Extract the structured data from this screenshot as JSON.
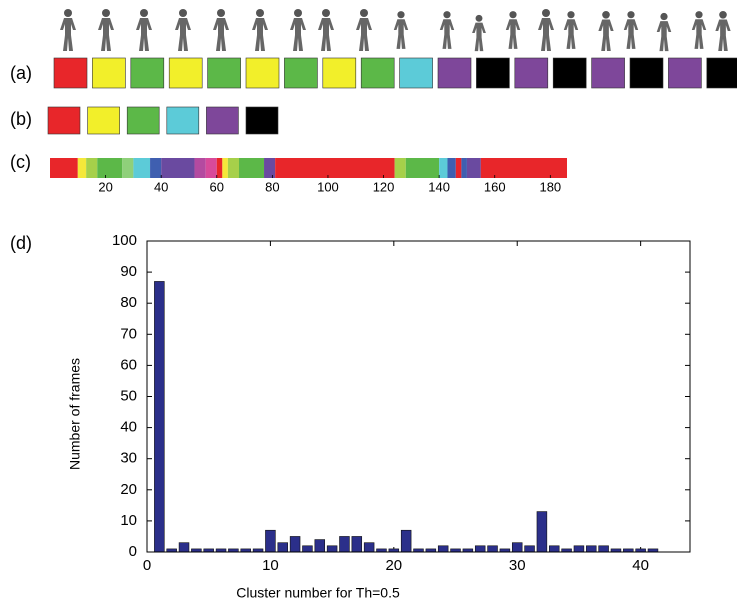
{
  "panels": {
    "a": {
      "label": "(a)",
      "colors": [
        "#e8262a",
        "#f2ef2a",
        "#5cb848",
        "#f2ef2a",
        "#5cb848",
        "#f2ef2a",
        "#5cb848",
        "#f2ef2a",
        "#5cb848",
        "#5ccbd8",
        "#7e479a",
        "#000000",
        "#7e479a",
        "#000000",
        "#7e479a",
        "#000000",
        "#7e479a",
        "#000000"
      ]
    },
    "b": {
      "label": "(b)",
      "colors": [
        "#e8262a",
        "#f2ef2a",
        "#5cb848",
        "#5ccbd8",
        "#7e479a",
        "#000000"
      ]
    },
    "c": {
      "label": "(c)",
      "xlim": [
        0,
        186
      ],
      "xticks": [
        20,
        40,
        60,
        80,
        100,
        120,
        140,
        160,
        180
      ],
      "segments": [
        {
          "start": 0,
          "end": 10,
          "color": "#e8262a"
        },
        {
          "start": 10,
          "end": 13,
          "color": "#f5e83a"
        },
        {
          "start": 13,
          "end": 17,
          "color": "#a6d04a"
        },
        {
          "start": 17,
          "end": 26,
          "color": "#5cb848"
        },
        {
          "start": 26,
          "end": 30,
          "color": "#8fd07a"
        },
        {
          "start": 30,
          "end": 36,
          "color": "#5ccbd8"
        },
        {
          "start": 36,
          "end": 40,
          "color": "#3f5fb0"
        },
        {
          "start": 40,
          "end": 52,
          "color": "#6a4aa0"
        },
        {
          "start": 52,
          "end": 56,
          "color": "#b44aa0"
        },
        {
          "start": 56,
          "end": 60,
          "color": "#d84a9a"
        },
        {
          "start": 60,
          "end": 62,
          "color": "#e8262a"
        },
        {
          "start": 62,
          "end": 64,
          "color": "#f5e83a"
        },
        {
          "start": 64,
          "end": 68,
          "color": "#a6d04a"
        },
        {
          "start": 68,
          "end": 77,
          "color": "#5cb848"
        },
        {
          "start": 77,
          "end": 81,
          "color": "#6a4aa0"
        },
        {
          "start": 81,
          "end": 124,
          "color": "#e8262a"
        },
        {
          "start": 124,
          "end": 128,
          "color": "#a6d04a"
        },
        {
          "start": 128,
          "end": 140,
          "color": "#5cb848"
        },
        {
          "start": 140,
          "end": 143,
          "color": "#5ccbd8"
        },
        {
          "start": 143,
          "end": 146,
          "color": "#3f5fb0"
        },
        {
          "start": 146,
          "end": 148,
          "color": "#e8262a"
        },
        {
          "start": 148,
          "end": 150,
          "color": "#3f5fb0"
        },
        {
          "start": 150,
          "end": 155,
          "color": "#6a4aa0"
        },
        {
          "start": 155,
          "end": 186,
          "color": "#e8262a"
        }
      ]
    }
  },
  "chart_data": {
    "type": "bar",
    "panel_label": "(d)",
    "x_label": "Cluster number for Th=0.5",
    "y_label": "Number of frames",
    "x": [
      1,
      2,
      3,
      4,
      5,
      6,
      7,
      8,
      9,
      10,
      11,
      12,
      13,
      14,
      15,
      16,
      17,
      18,
      19,
      20,
      21,
      22,
      23,
      24,
      25,
      26,
      27,
      28,
      29,
      30,
      31,
      32,
      33,
      34,
      35,
      36,
      37,
      38,
      39,
      40,
      41
    ],
    "values": [
      87,
      1,
      3,
      1,
      1,
      1,
      1,
      1,
      1,
      7,
      3,
      5,
      2,
      4,
      2,
      5,
      5,
      3,
      1,
      1,
      7,
      1,
      1,
      2,
      1,
      1,
      2,
      2,
      1,
      3,
      2,
      13,
      2,
      1,
      2,
      2,
      2,
      1,
      1,
      1,
      1
    ],
    "color": "#2b2f8a",
    "xlim": [
      0,
      44
    ],
    "xticks": [
      0,
      10,
      20,
      30,
      40
    ],
    "ylim": [
      0,
      100
    ],
    "yticks": [
      0,
      10,
      20,
      30,
      40,
      50,
      60,
      70,
      80,
      90,
      100
    ]
  }
}
